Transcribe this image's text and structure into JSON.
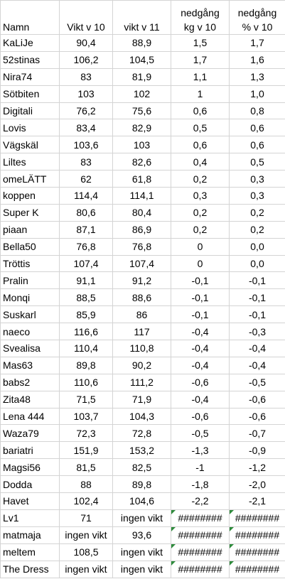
{
  "table": {
    "header": [
      [
        "Namn"
      ],
      [
        "Vikt v 10"
      ],
      [
        "vikt v 11"
      ],
      [
        "nedgång",
        "kg v 10"
      ],
      [
        "nedgång",
        "% v 10"
      ]
    ],
    "rows": [
      [
        "KaLiJe",
        "90,4",
        "88,9",
        "1,5",
        "1,7"
      ],
      [
        "52stinas",
        "106,2",
        "104,5",
        "1,7",
        "1,6"
      ],
      [
        "Nira74",
        "83",
        "81,9",
        "1,1",
        "1,3"
      ],
      [
        "Sötbiten",
        "103",
        "102",
        "1",
        "1,0"
      ],
      [
        "Digitali",
        "76,2",
        "75,6",
        "0,6",
        "0,8"
      ],
      [
        "Lovis",
        "83,4",
        "82,9",
        "0,5",
        "0,6"
      ],
      [
        "Vägskäl",
        "103,6",
        "103",
        "0,6",
        "0,6"
      ],
      [
        "Liltes",
        "83",
        "82,6",
        "0,4",
        "0,5"
      ],
      [
        "omeLÄTT",
        "62",
        "61,8",
        "0,2",
        "0,3"
      ],
      [
        "koppen",
        "114,4",
        "114,1",
        "0,3",
        "0,3"
      ],
      [
        "Super K",
        "80,6",
        "80,4",
        "0,2",
        "0,2"
      ],
      [
        "piaan",
        "87,1",
        "86,9",
        "0,2",
        "0,2"
      ],
      [
        "Bella50",
        "76,8",
        "76,8",
        "0",
        "0,0"
      ],
      [
        "Tröttis",
        "107,4",
        "107,4",
        "0",
        "0,0"
      ],
      [
        "Pralin",
        "91,1",
        "91,2",
        "-0,1",
        "-0,1"
      ],
      [
        "Monqi",
        "88,5",
        "88,6",
        "-0,1",
        "-0,1"
      ],
      [
        "Suskarl",
        "85,9",
        "86",
        "-0,1",
        "-0,1"
      ],
      [
        "naeco",
        "116,6",
        "117",
        "-0,4",
        "-0,3"
      ],
      [
        "Svealisa",
        "110,4",
        "110,8",
        "-0,4",
        "-0,4"
      ],
      [
        "Mas63",
        "89,8",
        "90,2",
        "-0,4",
        "-0,4"
      ],
      [
        "babs2",
        "110,6",
        "111,2",
        "-0,6",
        "-0,5"
      ],
      [
        "Zita48",
        "71,5",
        "71,9",
        "-0,4",
        "-0,6"
      ],
      [
        "Lena 444",
        "103,7",
        "104,3",
        "-0,6",
        "-0,6"
      ],
      [
        "Waza79",
        "72,3",
        "72,8",
        "-0,5",
        "-0,7"
      ],
      [
        "bariatri",
        "151,9",
        "153,2",
        "-1,3",
        "-0,9"
      ],
      [
        "Magsi56",
        "81,5",
        "82,5",
        "-1",
        "-1,2"
      ],
      [
        "Dodda",
        "88",
        "89,8",
        "-1,8",
        "-2,0"
      ],
      [
        "Havet",
        "102,4",
        "104,6",
        "-2,2",
        "-2,1"
      ],
      [
        "Lv1",
        "71",
        "ingen vikt",
        "########",
        "########"
      ],
      [
        "matmaja",
        "ingen vikt",
        "93,6",
        "########",
        "########"
      ],
      [
        "meltem",
        "108,5",
        "ingen vikt",
        "########",
        "########"
      ],
      [
        "The Dress",
        "ingen vikt",
        "ingen vikt",
        "########",
        "########"
      ]
    ]
  }
}
